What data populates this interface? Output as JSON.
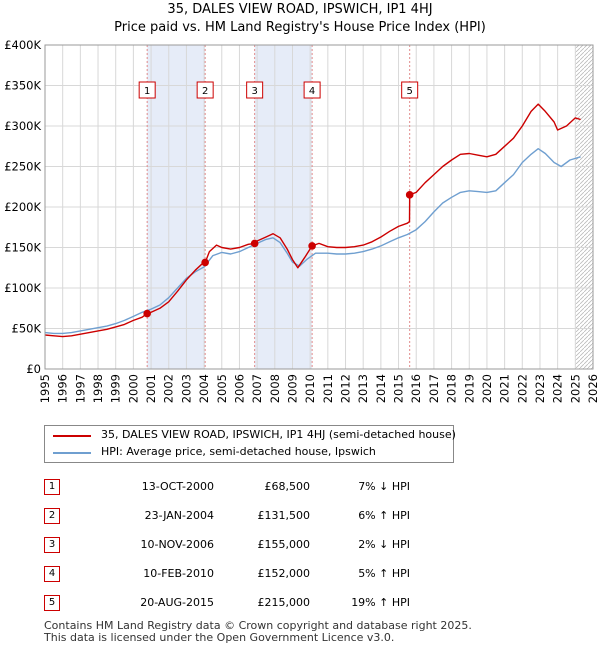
{
  "chart_data": {
    "type": "line",
    "title": "35, DALES VIEW ROAD, IPSWICH, IP1 4HJ",
    "subtitle": "Price paid vs. HM Land Registry's House Price Index (HPI)",
    "xlim": [
      1995,
      2026
    ],
    "ylim": [
      0,
      400000
    ],
    "x_ticks": [
      "1995",
      "1996",
      "1997",
      "1998",
      "1999",
      "2000",
      "2001",
      "2002",
      "2003",
      "2004",
      "2005",
      "2006",
      "2007",
      "2008",
      "2009",
      "2010",
      "2011",
      "2012",
      "2013",
      "2014",
      "2015",
      "2016",
      "2017",
      "2018",
      "2019",
      "2020",
      "2021",
      "2022",
      "2023",
      "2024",
      "2025",
      "2026"
    ],
    "y_ticks": [
      {
        "value": 0,
        "label": "£0"
      },
      {
        "value": 50000,
        "label": "£50K"
      },
      {
        "value": 100000,
        "label": "£100K"
      },
      {
        "value": 150000,
        "label": "£150K"
      },
      {
        "value": 200000,
        "label": "£200K"
      },
      {
        "value": 250000,
        "label": "£250K"
      },
      {
        "value": 300000,
        "label": "£300K"
      },
      {
        "value": 350000,
        "label": "£350K"
      },
      {
        "value": 400000,
        "label": "£400K"
      }
    ],
    "grid": true,
    "hatched_after": 2025.0,
    "shaded_spans": [
      [
        2000.78,
        2004.06
      ],
      [
        2006.86,
        2010.11
      ]
    ],
    "colors": {
      "property": "#cc0000",
      "hpi": "#6f9fd0",
      "shade": "#e6ecf8",
      "grid": "#d8d8d8",
      "vline": "#e08a8a"
    },
    "series": [
      {
        "name": "35, DALES VIEW ROAD, IPSWICH, IP1 4HJ (semi-detached house)",
        "color": "#cc0000",
        "points": [
          [
            1995.0,
            42000
          ],
          [
            1995.5,
            41000
          ],
          [
            1996.0,
            40000
          ],
          [
            1996.5,
            41000
          ],
          [
            1997.0,
            43000
          ],
          [
            1997.5,
            45000
          ],
          [
            1998.0,
            47000
          ],
          [
            1998.5,
            49000
          ],
          [
            1999.0,
            52000
          ],
          [
            1999.5,
            55000
          ],
          [
            2000.0,
            60000
          ],
          [
            2000.5,
            64000
          ],
          [
            2000.78,
            68500
          ],
          [
            2001.0,
            70000
          ],
          [
            2001.5,
            75000
          ],
          [
            2002.0,
            83000
          ],
          [
            2002.5,
            96000
          ],
          [
            2003.0,
            110000
          ],
          [
            2003.5,
            122000
          ],
          [
            2003.9,
            130000
          ],
          [
            2004.06,
            131500
          ],
          [
            2004.3,
            145000
          ],
          [
            2004.7,
            153000
          ],
          [
            2005.0,
            150000
          ],
          [
            2005.5,
            148000
          ],
          [
            2006.0,
            150000
          ],
          [
            2006.5,
            154000
          ],
          [
            2006.86,
            155000
          ],
          [
            2007.0,
            158000
          ],
          [
            2007.5,
            163000
          ],
          [
            2007.9,
            167000
          ],
          [
            2008.3,
            162000
          ],
          [
            2008.7,
            148000
          ],
          [
            2009.0,
            135000
          ],
          [
            2009.3,
            125000
          ],
          [
            2009.7,
            138000
          ],
          [
            2010.11,
            152000
          ],
          [
            2010.5,
            155000
          ],
          [
            2011.0,
            151000
          ],
          [
            2011.5,
            150000
          ],
          [
            2012.0,
            150000
          ],
          [
            2012.5,
            151000
          ],
          [
            2013.0,
            153000
          ],
          [
            2013.5,
            157000
          ],
          [
            2014.0,
            163000
          ],
          [
            2014.5,
            170000
          ],
          [
            2015.0,
            176000
          ],
          [
            2015.5,
            180000
          ],
          [
            2015.62,
            182000
          ],
          [
            2015.63,
            215000
          ],
          [
            2016.0,
            218000
          ],
          [
            2016.5,
            230000
          ],
          [
            2017.0,
            240000
          ],
          [
            2017.5,
            250000
          ],
          [
            2018.0,
            258000
          ],
          [
            2018.5,
            265000
          ],
          [
            2019.0,
            266000
          ],
          [
            2019.5,
            264000
          ],
          [
            2020.0,
            262000
          ],
          [
            2020.5,
            265000
          ],
          [
            2021.0,
            275000
          ],
          [
            2021.5,
            285000
          ],
          [
            2022.0,
            300000
          ],
          [
            2022.5,
            318000
          ],
          [
            2022.9,
            327000
          ],
          [
            2023.3,
            318000
          ],
          [
            2023.8,
            305000
          ],
          [
            2024.0,
            295000
          ],
          [
            2024.5,
            300000
          ],
          [
            2025.0,
            310000
          ],
          [
            2025.3,
            308000
          ]
        ]
      },
      {
        "name": "HPI: Average price, semi-detached house, Ipswich",
        "color": "#6f9fd0",
        "points": [
          [
            1995.0,
            45000
          ],
          [
            1995.5,
            44000
          ],
          [
            1996.0,
            44000
          ],
          [
            1996.5,
            45000
          ],
          [
            1997.0,
            47000
          ],
          [
            1997.5,
            49000
          ],
          [
            1998.0,
            51000
          ],
          [
            1998.5,
            53000
          ],
          [
            1999.0,
            56000
          ],
          [
            1999.5,
            60000
          ],
          [
            2000.0,
            65000
          ],
          [
            2000.5,
            70000
          ],
          [
            2001.0,
            74000
          ],
          [
            2001.5,
            79000
          ],
          [
            2002.0,
            88000
          ],
          [
            2002.5,
            100000
          ],
          [
            2003.0,
            112000
          ],
          [
            2003.5,
            120000
          ],
          [
            2004.0,
            126000
          ],
          [
            2004.5,
            140000
          ],
          [
            2005.0,
            144000
          ],
          [
            2005.5,
            142000
          ],
          [
            2006.0,
            145000
          ],
          [
            2006.5,
            150000
          ],
          [
            2007.0,
            155000
          ],
          [
            2007.5,
            160000
          ],
          [
            2007.9,
            162000
          ],
          [
            2008.3,
            156000
          ],
          [
            2008.7,
            143000
          ],
          [
            2009.0,
            132000
          ],
          [
            2009.4,
            127000
          ],
          [
            2009.8,
            135000
          ],
          [
            2010.3,
            143000
          ],
          [
            2011.0,
            143000
          ],
          [
            2011.5,
            142000
          ],
          [
            2012.0,
            142000
          ],
          [
            2012.5,
            143000
          ],
          [
            2013.0,
            145000
          ],
          [
            2013.5,
            148000
          ],
          [
            2014.0,
            152000
          ],
          [
            2014.5,
            157000
          ],
          [
            2015.0,
            162000
          ],
          [
            2015.5,
            166000
          ],
          [
            2016.0,
            172000
          ],
          [
            2016.5,
            182000
          ],
          [
            2017.0,
            194000
          ],
          [
            2017.5,
            205000
          ],
          [
            2018.0,
            212000
          ],
          [
            2018.5,
            218000
          ],
          [
            2019.0,
            220000
          ],
          [
            2019.5,
            219000
          ],
          [
            2020.0,
            218000
          ],
          [
            2020.5,
            220000
          ],
          [
            2021.0,
            230000
          ],
          [
            2021.5,
            240000
          ],
          [
            2022.0,
            255000
          ],
          [
            2022.5,
            265000
          ],
          [
            2022.9,
            272000
          ],
          [
            2023.3,
            266000
          ],
          [
            2023.8,
            255000
          ],
          [
            2024.2,
            250000
          ],
          [
            2024.7,
            258000
          ],
          [
            2025.3,
            262000
          ]
        ]
      }
    ],
    "sales": [
      {
        "marker": "1",
        "x": 2000.78,
        "price": 68500,
        "date": "13-OCT-2000",
        "price_label": "£68,500",
        "hpi": "7% ↓ HPI"
      },
      {
        "marker": "2",
        "x": 2004.06,
        "price": 131500,
        "date": "23-JAN-2004",
        "price_label": "£131,500",
        "hpi": "6% ↑ HPI"
      },
      {
        "marker": "3",
        "x": 2006.86,
        "price": 155000,
        "date": "10-NOV-2006",
        "price_label": "£155,000",
        "hpi": "2% ↓ HPI"
      },
      {
        "marker": "4",
        "x": 2010.11,
        "price": 152000,
        "date": "10-FEB-2010",
        "price_label": "£152,000",
        "hpi": "5% ↑ HPI"
      },
      {
        "marker": "5",
        "x": 2015.63,
        "price": 215000,
        "date": "20-AUG-2015",
        "price_label": "£215,000",
        "hpi": "19% ↑ HPI"
      }
    ]
  },
  "legend": {
    "property_label": "35, DALES VIEW ROAD, IPSWICH, IP1 4HJ (semi-detached house)",
    "hpi_label": "HPI: Average price, semi-detached house, Ipswich"
  },
  "footer": {
    "line1": "Contains HM Land Registry data © Crown copyright and database right 2025.",
    "line2": "This data is licensed under the Open Government Licence v3.0."
  }
}
